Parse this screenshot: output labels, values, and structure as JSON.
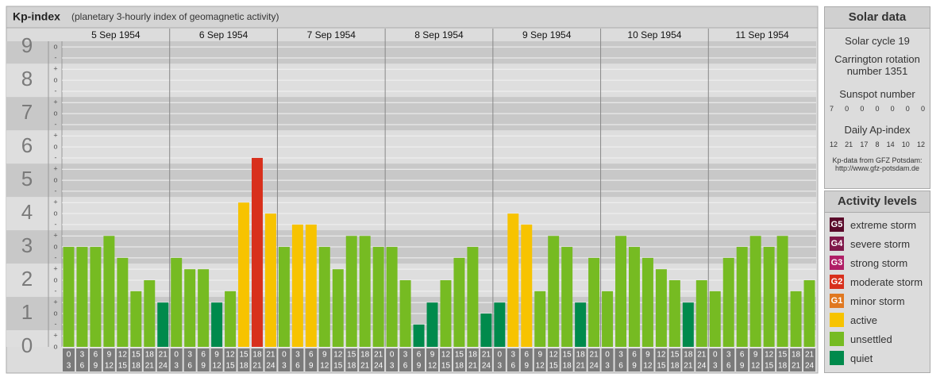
{
  "chart_data": {
    "type": "bar",
    "title": "Kp-index",
    "subtitle": "(planetary 3-hourly index of geomagnetic activity)",
    "days": [
      "5 Sep 1954",
      "6 Sep 1954",
      "7 Sep 1954",
      "8 Sep 1954",
      "9 Sep 1954",
      "10 Sep 1954",
      "11 Sep 1954"
    ],
    "time_slots": [
      [
        "0",
        "3"
      ],
      [
        "3",
        "6"
      ],
      [
        "6",
        "9"
      ],
      [
        "9",
        "12"
      ],
      [
        "12",
        "15"
      ],
      [
        "15",
        "18"
      ],
      [
        "18",
        "21"
      ],
      [
        "21",
        "24"
      ]
    ],
    "values": [
      3,
      3,
      3,
      3.33,
      2.67,
      1.67,
      2,
      1.33,
      2.67,
      2.33,
      2.33,
      1.33,
      1.67,
      4.33,
      5.67,
      4,
      3,
      3.67,
      3.67,
      3,
      2.33,
      3.33,
      3.33,
      3,
      3,
      2,
      0.67,
      1.33,
      2,
      2.67,
      3,
      1,
      1.33,
      4,
      3.67,
      1.67,
      3.33,
      3,
      1.33,
      2.67,
      1.67,
      3.33,
      3,
      2.67,
      2.33,
      2,
      1.33,
      2,
      1.67,
      2.67,
      3,
      3.33,
      3,
      3.33,
      1.67,
      2
    ],
    "colors": [
      "#76bb22",
      "#76bb22",
      "#76bb22",
      "#76bb22",
      "#76bb22",
      "#76bb22",
      "#76bb22",
      "#008a4c",
      "#76bb22",
      "#76bb22",
      "#76bb22",
      "#008a4c",
      "#76bb22",
      "#f7c300",
      "#d8301c",
      "#f7c300",
      "#76bb22",
      "#f7c300",
      "#f7c300",
      "#76bb22",
      "#76bb22",
      "#76bb22",
      "#76bb22",
      "#76bb22",
      "#76bb22",
      "#76bb22",
      "#008a4c",
      "#008a4c",
      "#76bb22",
      "#76bb22",
      "#76bb22",
      "#008a4c",
      "#008a4c",
      "#f7c300",
      "#f7c300",
      "#76bb22",
      "#76bb22",
      "#76bb22",
      "#008a4c",
      "#76bb22",
      "#76bb22",
      "#76bb22",
      "#76bb22",
      "#76bb22",
      "#76bb22",
      "#76bb22",
      "#008a4c",
      "#76bb22",
      "#76bb22",
      "#76bb22",
      "#76bb22",
      "#76bb22",
      "#76bb22",
      "#76bb22",
      "#76bb22",
      "#76bb22"
    ],
    "ylim": [
      0,
      9.17
    ],
    "major_ticks": [
      0,
      1,
      2,
      3,
      4,
      5,
      6,
      7,
      8,
      9
    ],
    "yticks": [
      {
        "value": 0,
        "label": "o"
      },
      {
        "value": 0.33,
        "label": "+"
      },
      {
        "value": 0.67,
        "label": "-"
      },
      {
        "value": 1,
        "label": "o"
      },
      {
        "value": 1.33,
        "label": "+"
      },
      {
        "value": 1.67,
        "label": "-"
      },
      {
        "value": 2,
        "label": "o"
      },
      {
        "value": 2.33,
        "label": "+"
      },
      {
        "value": 2.67,
        "label": "-"
      },
      {
        "value": 3,
        "label": "o"
      },
      {
        "value": 3.33,
        "label": "+"
      },
      {
        "value": 3.67,
        "label": "-"
      },
      {
        "value": 4,
        "label": "o"
      },
      {
        "value": 4.33,
        "label": "+"
      },
      {
        "value": 4.67,
        "label": "-"
      },
      {
        "value": 5,
        "label": "o"
      },
      {
        "value": 5.33,
        "label": "+"
      },
      {
        "value": 5.67,
        "label": "-"
      },
      {
        "value": 6,
        "label": "o"
      },
      {
        "value": 6.33,
        "label": "+"
      },
      {
        "value": 6.67,
        "label": "-"
      },
      {
        "value": 7,
        "label": "o"
      },
      {
        "value": 7.33,
        "label": "+"
      },
      {
        "value": 7.67,
        "label": "-"
      },
      {
        "value": 8,
        "label": "o"
      },
      {
        "value": 8.33,
        "label": "+"
      },
      {
        "value": 8.67,
        "label": "-"
      },
      {
        "value": 9,
        "label": "o"
      }
    ],
    "grid": true
  },
  "solar_data": {
    "title": "Solar data",
    "cycle": "Solar cycle 19",
    "carrington": "Carrington rotation number 1351",
    "sunspot_title": "Sunspot number",
    "sunspot": [
      7,
      0,
      0,
      0,
      0,
      0,
      0
    ],
    "ap_title": "Daily Ap-index",
    "ap": [
      12,
      21,
      17,
      8,
      14,
      10,
      12
    ],
    "source": "Kp-data from GFZ Potsdam:",
    "url": "http://www.gfz-potsdam.de"
  },
  "activity_levels": {
    "title": "Activity levels",
    "items": [
      {
        "code": "G5",
        "label": "extreme storm",
        "color": "#5a0a2a"
      },
      {
        "code": "G4",
        "label": "severe storm",
        "color": "#80184a"
      },
      {
        "code": "G3",
        "label": "strong storm",
        "color": "#b01e66"
      },
      {
        "code": "G2",
        "label": "moderate storm",
        "color": "#d8301c"
      },
      {
        "code": "G1",
        "label": "minor storm",
        "color": "#e07820"
      },
      {
        "code": "",
        "label": "active",
        "color": "#f7c300"
      },
      {
        "code": "",
        "label": "unsettled",
        "color": "#76bb22"
      },
      {
        "code": "",
        "label": "quiet",
        "color": "#008a4c"
      }
    ]
  }
}
